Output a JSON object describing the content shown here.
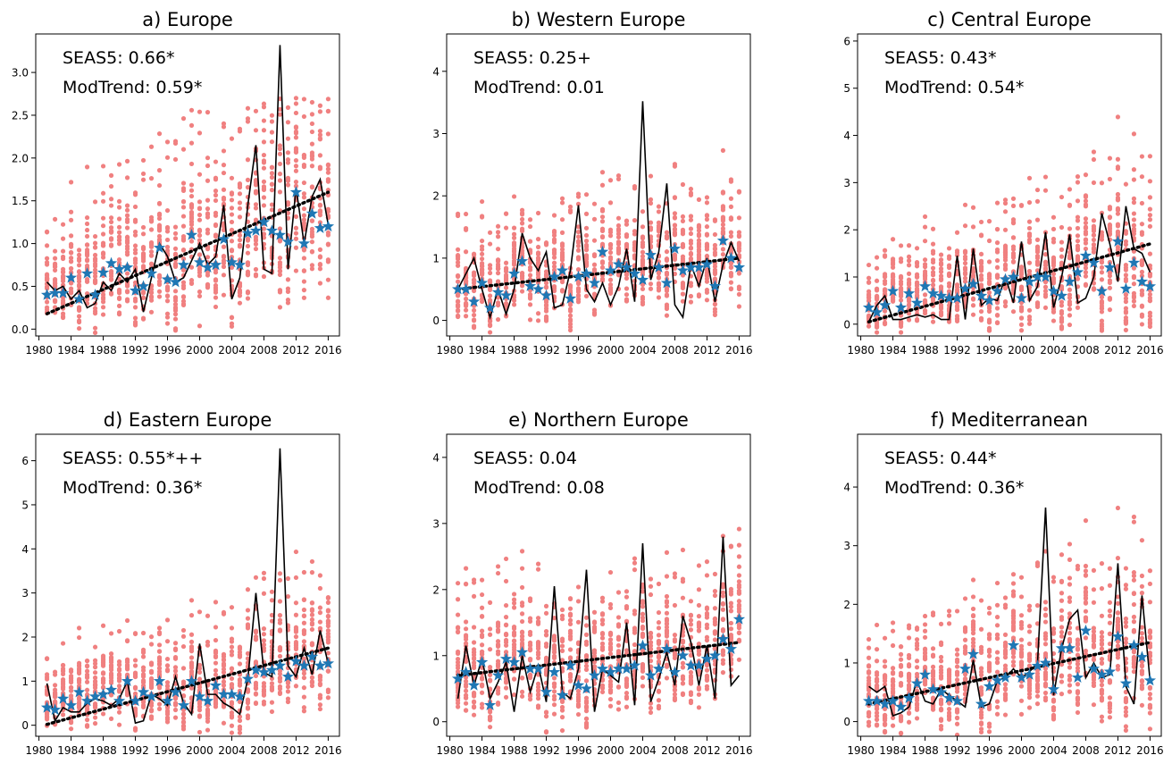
{
  "figure": {
    "colors": {
      "dots": "#f08080",
      "stars": "#1f77b4",
      "obs_line": "#000000",
      "trend": "#000000"
    }
  },
  "chart_data": [
    {
      "type": "scatter",
      "title": "a) Europe",
      "annotation_seas5": "SEAS5: 0.66*",
      "annotation_modtrend": "ModTrend: 0.59*",
      "xlim": [
        1979.6,
        2017.4
      ],
      "ylim": [
        -0.08,
        3.45
      ],
      "xticks": [
        1980,
        1984,
        1988,
        1992,
        1996,
        2000,
        2004,
        2008,
        2012,
        2016
      ],
      "xtick_labels": [
        "1980",
        "1984",
        "1988",
        "1992",
        "1996",
        "2000",
        "2004",
        "2008",
        "2012",
        "2016"
      ],
      "yticks": [
        0,
        0.5,
        1,
        1.5,
        2,
        2.5,
        3
      ],
      "ytick_labels": [
        "0.0",
        "0.5",
        "1.0",
        "1.5",
        "2.0",
        "2.5",
        "3.0"
      ],
      "years": [
        1981,
        1982,
        1983,
        1984,
        1985,
        1986,
        1987,
        1988,
        1989,
        1990,
        1991,
        1992,
        1993,
        1994,
        1995,
        1996,
        1997,
        1998,
        1999,
        2000,
        2001,
        2002,
        2003,
        2004,
        2005,
        2006,
        2007,
        2008,
        2009,
        2010,
        2011,
        2012,
        2013,
        2014,
        2015,
        2016
      ],
      "observed": [
        0.55,
        0.45,
        0.5,
        0.35,
        0.45,
        0.25,
        0.3,
        0.55,
        0.45,
        0.65,
        0.55,
        0.7,
        0.2,
        0.6,
        1.0,
        0.85,
        0.55,
        0.6,
        0.8,
        1.0,
        0.75,
        0.85,
        1.45,
        0.35,
        0.6,
        1.45,
        2.15,
        0.7,
        0.65,
        3.32,
        0.7,
        1.65,
        1.0,
        1.55,
        1.75,
        1.22
      ],
      "ensemble_mean": [
        0.4,
        0.42,
        0.42,
        0.6,
        0.35,
        0.65,
        0.4,
        0.66,
        0.77,
        0.7,
        0.72,
        0.45,
        0.5,
        0.65,
        0.95,
        0.58,
        0.55,
        0.75,
        1.1,
        0.78,
        0.72,
        0.75,
        1.05,
        0.78,
        0.75,
        1.12,
        1.15,
        1.25,
        1.15,
        1.1,
        1.02,
        1.6,
        1.0,
        1.35,
        1.18,
        1.2
      ],
      "trend": [
        0.18,
        1.6
      ],
      "spread": [
        0.3,
        0.3,
        0.35,
        0.4,
        0.35,
        0.42,
        0.4,
        0.45,
        0.45,
        0.45,
        0.5,
        0.5,
        0.5,
        0.52,
        0.55,
        0.55,
        0.55,
        0.58,
        0.6,
        0.6,
        0.62,
        0.62,
        0.65,
        0.65,
        0.65,
        0.7,
        0.7,
        0.72,
        0.72,
        0.75,
        0.75,
        0.75,
        0.78,
        0.78,
        0.8,
        0.8
      ],
      "ymax_clip": 2.7
    },
    {
      "type": "scatter",
      "title": "b) Western Europe",
      "annotation_seas5": "SEAS5: 0.25+",
      "annotation_modtrend": "ModTrend: 0.01",
      "xlim": [
        1979.6,
        2017.4
      ],
      "ylim": [
        -0.25,
        4.6
      ],
      "xticks": [
        1980,
        1984,
        1988,
        1992,
        1996,
        2000,
        2004,
        2008,
        2012,
        2016
      ],
      "xtick_labels": [
        "1980",
        "1984",
        "1988",
        "1992",
        "1996",
        "2000",
        "2004",
        "2008",
        "2012",
        "2016"
      ],
      "yticks": [
        0,
        1,
        2,
        3,
        4
      ],
      "ytick_labels": [
        "0",
        "1",
        "2",
        "3",
        "4"
      ],
      "years": [
        1981,
        1982,
        1983,
        1984,
        1985,
        1986,
        1987,
        1988,
        1989,
        1990,
        1991,
        1992,
        1993,
        1994,
        1995,
        1996,
        1997,
        1998,
        1999,
        2000,
        2001,
        2002,
        2003,
        2004,
        2005,
        2006,
        2007,
        2008,
        2009,
        2010,
        2011,
        2012,
        2013,
        2014,
        2015,
        2016
      ],
      "observed": [
        0.5,
        0.75,
        1.0,
        0.5,
        0.05,
        0.5,
        0.1,
        0.5,
        1.4,
        1.0,
        0.8,
        1.1,
        0.2,
        0.25,
        0.8,
        1.85,
        0.5,
        0.3,
        0.6,
        0.25,
        0.55,
        1.15,
        0.3,
        3.52,
        0.65,
        1.1,
        2.2,
        0.25,
        0.05,
        0.9,
        0.55,
        1.0,
        0.3,
        0.9,
        1.25,
        0.95
      ],
      "ensemble_mean": [
        0.5,
        0.5,
        0.3,
        0.6,
        0.2,
        0.45,
        0.4,
        0.75,
        0.95,
        0.55,
        0.5,
        0.4,
        0.7,
        0.8,
        0.35,
        0.7,
        0.75,
        0.6,
        1.1,
        0.8,
        0.9,
        0.85,
        0.75,
        0.65,
        1.05,
        0.85,
        0.6,
        1.15,
        0.8,
        0.85,
        0.85,
        0.9,
        0.55,
        1.28,
        1.0,
        0.85
      ],
      "trend": [
        0.5,
        1.0
      ],
      "spread": [
        0.45,
        0.45,
        0.45,
        0.45,
        0.45,
        0.45,
        0.45,
        0.45,
        0.45,
        0.45,
        0.45,
        0.45,
        0.45,
        0.45,
        0.5,
        0.5,
        0.5,
        0.5,
        0.5,
        0.5,
        0.5,
        0.5,
        0.5,
        0.5,
        0.5,
        0.5,
        0.5,
        0.5,
        0.5,
        0.5,
        0.5,
        0.5,
        0.5,
        0.5,
        0.5,
        0.5
      ],
      "ymax_clip": 4.45
    },
    {
      "type": "scatter",
      "title": "c) Central Europe",
      "annotation_seas5": "SEAS5: 0.43*",
      "annotation_modtrend": "ModTrend: 0.54*",
      "xlim": [
        1979.6,
        2017.4
      ],
      "ylim": [
        -0.25,
        6.15
      ],
      "xticks": [
        1980,
        1984,
        1988,
        1992,
        1996,
        2000,
        2004,
        2008,
        2012,
        2016
      ],
      "xtick_labels": [
        "1980",
        "1984",
        "1988",
        "1992",
        "1996",
        "2000",
        "2004",
        "2008",
        "2012",
        "2016"
      ],
      "yticks": [
        0,
        1,
        2,
        3,
        4,
        5,
        6
      ],
      "ytick_labels": [
        "0",
        "1",
        "2",
        "3",
        "4",
        "5",
        "6"
      ],
      "years": [
        1981,
        1982,
        1983,
        1984,
        1985,
        1986,
        1987,
        1988,
        1989,
        1990,
        1991,
        1992,
        1993,
        1994,
        1995,
        1996,
        1997,
        1998,
        1999,
        2000,
        2001,
        2002,
        2003,
        2004,
        2005,
        2006,
        2007,
        2008,
        2009,
        2010,
        2011,
        2012,
        2013,
        2014,
        2015,
        2016
      ],
      "observed": [
        0.05,
        0.4,
        0.6,
        0.1,
        0.1,
        0.15,
        0.2,
        0.15,
        0.2,
        0.1,
        0.1,
        1.45,
        0.1,
        1.6,
        0.4,
        0.55,
        0.5,
        1.0,
        0.45,
        1.75,
        0.5,
        0.8,
        1.95,
        0.35,
        1.0,
        1.9,
        0.45,
        0.55,
        1.0,
        2.35,
        1.7,
        0.9,
        2.5,
        1.6,
        1.5,
        1.1
      ],
      "ensemble_mean": [
        0.35,
        0.25,
        0.4,
        0.7,
        0.35,
        0.65,
        0.45,
        0.8,
        0.65,
        0.6,
        0.55,
        0.55,
        0.75,
        0.85,
        0.6,
        0.5,
        0.7,
        0.95,
        1.0,
        0.55,
        0.9,
        1.0,
        1.0,
        0.7,
        0.6,
        0.9,
        1.1,
        1.45,
        1.3,
        0.7,
        1.2,
        1.75,
        0.75,
        1.3,
        0.9,
        0.8
      ],
      "trend": [
        0.05,
        1.7
      ],
      "spread": [
        0.4,
        0.4,
        0.45,
        0.45,
        0.5,
        0.5,
        0.5,
        0.5,
        0.55,
        0.55,
        0.55,
        0.6,
        0.6,
        0.6,
        0.65,
        0.65,
        0.65,
        0.7,
        0.7,
        0.7,
        0.75,
        0.75,
        0.75,
        0.8,
        0.8,
        0.8,
        0.85,
        0.85,
        0.85,
        0.9,
        0.9,
        0.9,
        0.95,
        0.95,
        0.95,
        1.0
      ],
      "ymax_clip": 5.9
    },
    {
      "type": "scatter",
      "title": "d) Eastern Europe",
      "annotation_seas5": "SEAS5: 0.55*++",
      "annotation_modtrend": "ModTrend: 0.36*",
      "xlim": [
        1979.6,
        2017.4
      ],
      "ylim": [
        -0.25,
        6.6
      ],
      "xticks": [
        1980,
        1984,
        1988,
        1992,
        1996,
        2000,
        2004,
        2008,
        2012,
        2016
      ],
      "xtick_labels": [
        "1980",
        "1984",
        "1988",
        "1992",
        "1996",
        "2000",
        "2004",
        "2008",
        "2012",
        "2016"
      ],
      "yticks": [
        0,
        1,
        2,
        3,
        4,
        5,
        6
      ],
      "ytick_labels": [
        "0",
        "1",
        "2",
        "3",
        "4",
        "5",
        "6"
      ],
      "years": [
        1981,
        1982,
        1983,
        1984,
        1985,
        1986,
        1987,
        1988,
        1989,
        1990,
        1991,
        1992,
        1993,
        1994,
        1995,
        1996,
        1997,
        1998,
        1999,
        2000,
        2001,
        2002,
        2003,
        2004,
        2005,
        2006,
        2007,
        2008,
        2009,
        2010,
        2011,
        2012,
        2013,
        2014,
        2015,
        2016
      ],
      "observed": [
        0.95,
        0.1,
        0.4,
        0.3,
        0.3,
        0.5,
        0.6,
        0.55,
        0.45,
        0.6,
        1.0,
        0.05,
        0.1,
        0.7,
        0.6,
        0.45,
        1.1,
        0.5,
        0.25,
        1.85,
        0.7,
        0.7,
        0.5,
        0.4,
        0.25,
        1.05,
        3.0,
        1.2,
        1.1,
        6.28,
        1.35,
        1.1,
        1.75,
        1.15,
        2.15,
        1.4
      ],
      "ensemble_mean": [
        0.4,
        0.35,
        0.6,
        0.45,
        0.75,
        0.55,
        0.65,
        0.7,
        0.8,
        0.55,
        1.0,
        0.55,
        0.75,
        0.65,
        1.0,
        0.55,
        0.75,
        0.45,
        1.0,
        0.65,
        0.55,
        0.9,
        0.7,
        0.7,
        0.65,
        1.05,
        1.25,
        1.2,
        1.25,
        1.35,
        1.1,
        1.45,
        1.35,
        1.55,
        1.35,
        1.4
      ],
      "trend": [
        0.02,
        1.75
      ],
      "spread": [
        0.45,
        0.45,
        0.45,
        0.5,
        0.5,
        0.5,
        0.5,
        0.55,
        0.55,
        0.55,
        0.55,
        0.6,
        0.6,
        0.6,
        0.6,
        0.65,
        0.65,
        0.65,
        0.65,
        0.7,
        0.7,
        0.7,
        0.7,
        0.75,
        0.75,
        0.75,
        0.75,
        0.8,
        0.8,
        0.8,
        0.8,
        0.85,
        0.85,
        0.85,
        0.85,
        0.9
      ],
      "ymax_clip": 4.45
    },
    {
      "type": "scatter",
      "title": "e) Northern Europe",
      "annotation_seas5": "SEAS5: 0.04",
      "annotation_modtrend": "ModTrend: 0.08",
      "xlim": [
        1979.6,
        2017.4
      ],
      "ylim": [
        -0.22,
        4.35
      ],
      "xticks": [
        1980,
        1984,
        1988,
        1992,
        1996,
        2000,
        2004,
        2008,
        2012,
        2016
      ],
      "xtick_labels": [
        "1980",
        "1984",
        "1988",
        "1992",
        "1996",
        "2000",
        "2004",
        "2008",
        "2012",
        "2016"
      ],
      "yticks": [
        0,
        1,
        2,
        3,
        4
      ],
      "ytick_labels": [
        "0",
        "1",
        "2",
        "3",
        "4"
      ],
      "years": [
        1981,
        1982,
        1983,
        1984,
        1985,
        1986,
        1987,
        1988,
        1989,
        1990,
        1991,
        1992,
        1993,
        1994,
        1995,
        1996,
        1997,
        1998,
        1999,
        2000,
        2001,
        2002,
        2003,
        2004,
        2005,
        2006,
        2007,
        2008,
        2009,
        2010,
        2011,
        2012,
        2013,
        2014,
        2015,
        2016
      ],
      "observed": [
        0.35,
        1.15,
        0.55,
        0.95,
        0.35,
        0.6,
        0.9,
        0.15,
        1.0,
        0.45,
        0.85,
        0.3,
        2.05,
        0.45,
        0.35,
        0.8,
        2.3,
        0.15,
        0.8,
        0.7,
        0.6,
        1.5,
        0.25,
        2.7,
        0.3,
        0.65,
        1.05,
        0.55,
        1.6,
        1.2,
        0.55,
        1.15,
        0.35,
        2.8,
        0.55,
        0.7
      ],
      "ensemble_mean": [
        0.65,
        0.75,
        0.55,
        0.9,
        0.25,
        0.7,
        0.95,
        0.9,
        1.05,
        0.8,
        0.8,
        0.45,
        0.75,
        0.4,
        0.85,
        0.55,
        0.5,
        0.7,
        0.8,
        0.75,
        0.8,
        0.8,
        0.85,
        1.15,
        0.7,
        0.8,
        1.1,
        0.75,
        1.0,
        0.85,
        0.85,
        0.95,
        1.0,
        1.25,
        1.1,
        1.55
      ],
      "trend": [
        0.7,
        1.2
      ],
      "spread": [
        0.55,
        0.55,
        0.55,
        0.55,
        0.55,
        0.55,
        0.55,
        0.55,
        0.55,
        0.55,
        0.55,
        0.55,
        0.55,
        0.55,
        0.55,
        0.55,
        0.55,
        0.55,
        0.55,
        0.55,
        0.55,
        0.55,
        0.55,
        0.55,
        0.55,
        0.55,
        0.55,
        0.55,
        0.55,
        0.55,
        0.55,
        0.55,
        0.55,
        0.55,
        0.55,
        0.55
      ],
      "ymax_clip": 4.15
    },
    {
      "type": "scatter",
      "title": "f) Mediterranean",
      "annotation_seas5": "SEAS5: 0.44*",
      "annotation_modtrend": "ModTrend: 0.36*",
      "xlim": [
        1979.6,
        2017.4
      ],
      "ylim": [
        -0.25,
        4.9
      ],
      "xticks": [
        1980,
        1984,
        1988,
        1992,
        1996,
        2000,
        2004,
        2008,
        2012,
        2016
      ],
      "xtick_labels": [
        "1980",
        "1984",
        "1988",
        "1992",
        "1996",
        "2000",
        "2004",
        "2008",
        "2012",
        "2016"
      ],
      "yticks": [
        0,
        1,
        2,
        3,
        4
      ],
      "ytick_labels": [
        "0",
        "1",
        "2",
        "3",
        "4"
      ],
      "years": [
        1981,
        1982,
        1983,
        1984,
        1985,
        1986,
        1987,
        1988,
        1989,
        1990,
        1991,
        1992,
        1993,
        1994,
        1995,
        1996,
        1997,
        1998,
        1999,
        2000,
        2001,
        2002,
        2003,
        2004,
        2005,
        2006,
        2007,
        2008,
        2009,
        2010,
        2011,
        2012,
        2013,
        2014,
        2015,
        2016
      ],
      "observed": [
        0.6,
        0.5,
        0.6,
        0.1,
        0.15,
        0.25,
        0.7,
        0.35,
        0.3,
        0.55,
        0.45,
        0.35,
        0.25,
        1.05,
        0.25,
        0.3,
        0.7,
        0.75,
        0.9,
        0.75,
        0.85,
        1.0,
        3.65,
        0.45,
        1.25,
        1.75,
        1.9,
        0.75,
        1.0,
        0.75,
        0.8,
        2.7,
        0.6,
        0.3,
        2.15,
        0.7
      ],
      "ensemble_mean": [
        0.35,
        0.35,
        0.3,
        0.35,
        0.25,
        0.4,
        0.65,
        0.8,
        0.55,
        0.5,
        0.4,
        0.35,
        0.9,
        1.15,
        0.3,
        0.6,
        0.7,
        0.75,
        1.3,
        0.75,
        0.8,
        0.95,
        1.0,
        0.55,
        1.25,
        1.25,
        0.75,
        1.55,
        0.9,
        0.8,
        0.85,
        1.45,
        0.65,
        1.3,
        1.1,
        0.7
      ],
      "trend": [
        0.3,
        1.35
      ],
      "spread": [
        0.45,
        0.45,
        0.45,
        0.45,
        0.5,
        0.5,
        0.5,
        0.5,
        0.5,
        0.55,
        0.55,
        0.55,
        0.55,
        0.55,
        0.6,
        0.6,
        0.6,
        0.6,
        0.6,
        0.65,
        0.65,
        0.65,
        0.65,
        0.65,
        0.7,
        0.7,
        0.7,
        0.7,
        0.7,
        0.75,
        0.75,
        0.75,
        0.75,
        0.75,
        0.8,
        0.8
      ],
      "ymax_clip": 4.7
    }
  ]
}
